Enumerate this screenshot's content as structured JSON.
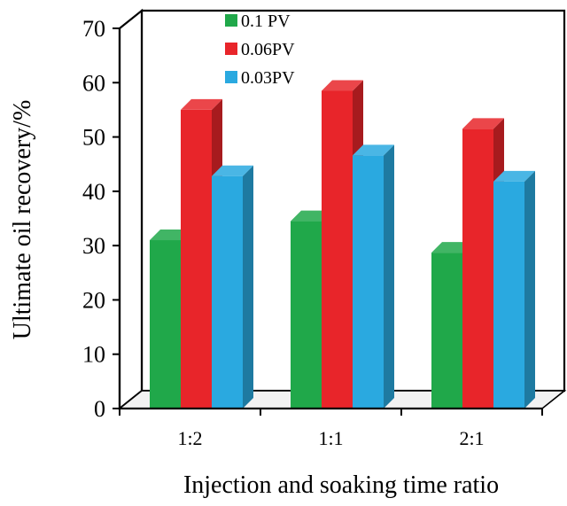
{
  "chart_data": {
    "type": "bar",
    "style": "3d-clustered",
    "categories": [
      "1:2",
      "1:1",
      "2:1"
    ],
    "series": [
      {
        "name": "0.1 PV",
        "values": [
          31,
          34.5,
          28.7
        ],
        "color": "#20a84a"
      },
      {
        "name": "0.06PV",
        "values": [
          55,
          58.5,
          51.5
        ],
        "color": "#e8252a"
      },
      {
        "name": "0.03PV",
        "values": [
          42.8,
          46.6,
          41.8
        ],
        "color": "#2aa9e0"
      }
    ],
    "xlabel": "Injection  and soaking time ratio",
    "ylabel": "Ultimate oil recovery/%",
    "ylim": [
      0,
      70
    ],
    "yticks": [
      0,
      10,
      20,
      30,
      40,
      50,
      60,
      70
    ],
    "grid": false,
    "legend": "top-left-inside"
  }
}
